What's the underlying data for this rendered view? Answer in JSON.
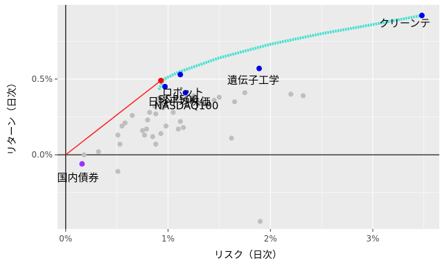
{
  "chart_data": {
    "type": "scatter",
    "xlabel": "リスク（日次）",
    "ylabel": "リターン（日次）",
    "xlim": [
      -0.0008,
      0.0365
    ],
    "ylim": [
      -0.0049,
      0.0099
    ],
    "x_ticks": [
      {
        "value": 0.0,
        "label": "0%"
      },
      {
        "value": 0.01,
        "label": "1%"
      },
      {
        "value": 0.02,
        "label": "2%"
      },
      {
        "value": 0.03,
        "label": "3%"
      }
    ],
    "y_ticks": [
      {
        "value": 0.0,
        "label": "0.0%"
      },
      {
        "value": 0.005,
        "label": "0.5%"
      }
    ],
    "grid": true,
    "background_color": "#ebebeb",
    "grid_color": "#ffffff",
    "reference_lines": [
      {
        "axis": "x",
        "value": 0.0,
        "color": "#000000"
      },
      {
        "axis": "y",
        "value": 0.0,
        "color": "#000000"
      }
    ],
    "capital_market_line": {
      "color": "#ff2020",
      "points": [
        {
          "x": 0.0,
          "y": 0.0
        },
        {
          "x": 0.0093,
          "y": 0.0049
        }
      ]
    },
    "efficient_frontier": {
      "color": "#40e0d0",
      "points": [
        {
          "x": 0.0091,
          "y": 0.0043
        },
        {
          "x": 0.0096,
          "y": 0.005
        },
        {
          "x": 0.011,
          "y": 0.00545
        },
        {
          "x": 0.015,
          "y": 0.0064
        },
        {
          "x": 0.02,
          "y": 0.0073
        },
        {
          "x": 0.025,
          "y": 0.008
        },
        {
          "x": 0.03,
          "y": 0.0086
        },
        {
          "x": 0.0348,
          "y": 0.0092
        }
      ]
    },
    "highlighted_points": [
      {
        "x": 0.0348,
        "y": 0.0092,
        "color": "#0000ee",
        "label": "クリーンテ"
      },
      {
        "x": 0.0189,
        "y": 0.0057,
        "color": "#0000ee",
        "label": "遺伝子工学"
      },
      {
        "x": 0.0097,
        "y": 0.0045,
        "color": "#0000ee",
        "label": "ロボット"
      },
      {
        "x": 0.0117,
        "y": 0.0041,
        "color": "#0000ee",
        "label": "日経平均株価"
      },
      {
        "x": 0.0093,
        "y": 0.0049,
        "color": "#ff0000",
        "label": ""
      },
      {
        "x": 0.0112,
        "y": 0.0053,
        "color": "#0000ee",
        "label": ""
      },
      {
        "x": 0.0016,
        "y": -0.0006,
        "color": "#9b30ff",
        "label": "国内債券"
      }
    ],
    "overlay_labels": [
      {
        "text": "S&P500",
        "x": 0.011,
        "y": 0.00345
      },
      {
        "text": "NASDAQ100",
        "x": 0.0118,
        "y": 0.003
      }
    ],
    "background_points": {
      "color": "#bebebe",
      "points": [
        {
          "x": 0.0018,
          "y": 0.0
        },
        {
          "x": 0.0032,
          "y": 0.0002
        },
        {
          "x": 0.0051,
          "y": -0.0011
        },
        {
          "x": 0.0051,
          "y": 0.0013
        },
        {
          "x": 0.0053,
          "y": 0.0007
        },
        {
          "x": 0.0055,
          "y": 0.0019
        },
        {
          "x": 0.0058,
          "y": 0.0021
        },
        {
          "x": 0.0065,
          "y": 0.0026
        },
        {
          "x": 0.0075,
          "y": 0.0016
        },
        {
          "x": 0.0077,
          "y": 0.0013
        },
        {
          "x": 0.0079,
          "y": 0.0017
        },
        {
          "x": 0.008,
          "y": 0.0023
        },
        {
          "x": 0.0082,
          "y": 0.0028
        },
        {
          "x": 0.0085,
          "y": 0.0012
        },
        {
          "x": 0.0087,
          "y": 0.0032
        },
        {
          "x": 0.0088,
          "y": 0.0007
        },
        {
          "x": 0.0088,
          "y": 0.0027
        },
        {
          "x": 0.009,
          "y": 0.0037
        },
        {
          "x": 0.0093,
          "y": 0.0014
        },
        {
          "x": 0.0095,
          "y": 0.0031
        },
        {
          "x": 0.0098,
          "y": 0.0019
        },
        {
          "x": 0.0105,
          "y": 0.0028
        },
        {
          "x": 0.0108,
          "y": 0.0036
        },
        {
          "x": 0.011,
          "y": 0.0017
        },
        {
          "x": 0.0112,
          "y": 0.0022
        },
        {
          "x": 0.0115,
          "y": 0.0018
        },
        {
          "x": 0.0118,
          "y": 0.0036
        },
        {
          "x": 0.0125,
          "y": 0.0039
        },
        {
          "x": 0.0132,
          "y": 0.0034
        },
        {
          "x": 0.0138,
          "y": 0.0033
        },
        {
          "x": 0.0145,
          "y": 0.0036
        },
        {
          "x": 0.015,
          "y": 0.0038
        },
        {
          "x": 0.0162,
          "y": 0.0011
        },
        {
          "x": 0.0165,
          "y": 0.0035
        },
        {
          "x": 0.0175,
          "y": 0.0041
        },
        {
          "x": 0.019,
          "y": -0.0044
        },
        {
          "x": 0.022,
          "y": 0.004
        },
        {
          "x": 0.0232,
          "y": 0.0039
        }
      ]
    }
  }
}
